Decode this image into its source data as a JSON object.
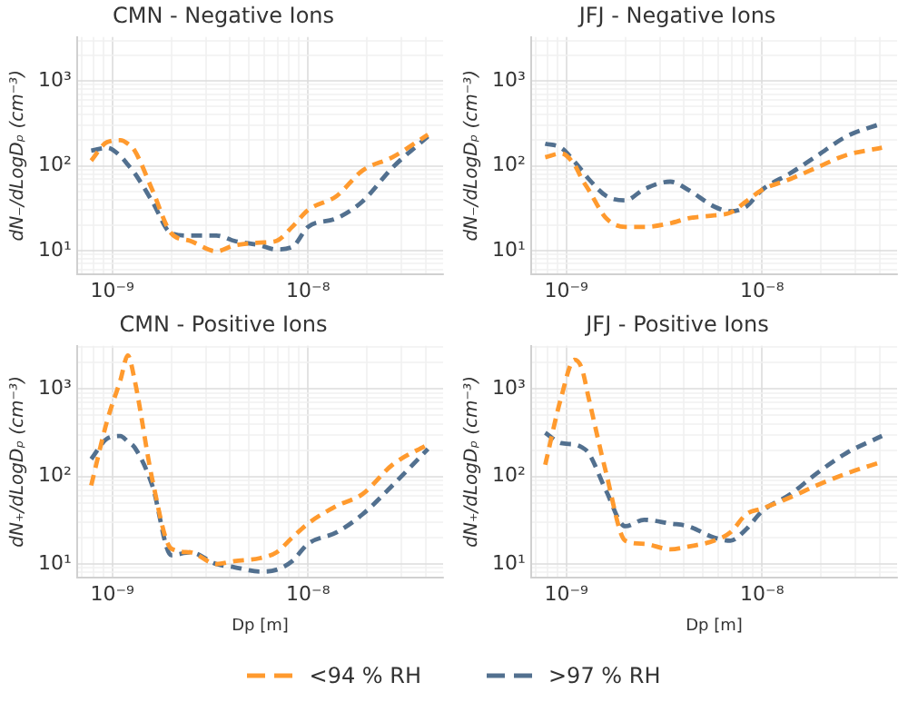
{
  "chart_data": [
    {
      "type": "line",
      "title": "CMN - Negative Ions",
      "ylabel": "dN₋/dLogDₚ (cm⁻³)",
      "log": "xy",
      "grid": true,
      "legend": "bottom",
      "marker": "none",
      "line_style": "dashed",
      "x": [
        7.8e-10,
        9.4e-10,
        1.1e-09,
        1.2e-09,
        1.3e-09,
        1.6e-09,
        2e-09,
        2.5e-09,
        3.4e-09,
        4.2e-09,
        5.7e-09,
        6.9e-09,
        8.3e-09,
        1e-08,
        1.4e-08,
        1.9e-08,
        2.7e-08,
        4.1e-08
      ],
      "xlim": [
        6.6e-10,
        4.9e-08
      ],
      "xticks": [
        {
          "value": 7e-10,
          "label": null
        },
        {
          "value": 8e-10,
          "label": null
        },
        {
          "value": 9e-10,
          "label": null
        },
        {
          "value": 1e-09,
          "label": "10⁻⁹"
        },
        {
          "value": 2e-09,
          "label": null
        },
        {
          "value": 3e-09,
          "label": null
        },
        {
          "value": 4e-09,
          "label": null
        },
        {
          "value": 5e-09,
          "label": null
        },
        {
          "value": 6e-09,
          "label": null
        },
        {
          "value": 7e-09,
          "label": null
        },
        {
          "value": 8e-09,
          "label": null
        },
        {
          "value": 9e-09,
          "label": null
        },
        {
          "value": 1e-08,
          "label": "10⁻⁸"
        },
        {
          "value": 2e-08,
          "label": null
        },
        {
          "value": 3e-08,
          "label": null
        },
        {
          "value": 4e-08,
          "label": null
        }
      ],
      "ylim": [
        5.3,
        3300
      ],
      "yticks": [
        {
          "value": 6,
          "label": null
        },
        {
          "value": 7,
          "label": null
        },
        {
          "value": 8,
          "label": null
        },
        {
          "value": 9,
          "label": null
        },
        {
          "value": 10,
          "label": "10¹"
        },
        {
          "value": 20,
          "label": null
        },
        {
          "value": 30,
          "label": null
        },
        {
          "value": 40,
          "label": null
        },
        {
          "value": 50,
          "label": null
        },
        {
          "value": 60,
          "label": null
        },
        {
          "value": 70,
          "label": null
        },
        {
          "value": 80,
          "label": null
        },
        {
          "value": 90,
          "label": null
        },
        {
          "value": 100,
          "label": "10²"
        },
        {
          "value": 200,
          "label": null
        },
        {
          "value": 300,
          "label": null
        },
        {
          "value": 400,
          "label": null
        },
        {
          "value": 500,
          "label": null
        },
        {
          "value": 600,
          "label": null
        },
        {
          "value": 700,
          "label": null
        },
        {
          "value": 800,
          "label": null
        },
        {
          "value": 900,
          "label": null
        },
        {
          "value": 1000,
          "label": "10³"
        },
        {
          "value": 2000,
          "label": null
        },
        {
          "value": 3000,
          "label": null
        }
      ],
      "series": [
        {
          "name": "<94 % RH",
          "color": "#ff9a2e",
          "values": [
            115,
            190,
            200,
            182,
            151,
            52,
            16,
            13,
            9.8,
            11.5,
            12.4,
            13,
            19,
            30,
            44,
            88,
            126,
            233
          ]
        },
        {
          "name": ">97 % RH",
          "color": "#52708f",
          "values": [
            151,
            163,
            130,
            103,
            82,
            38,
            16,
            15,
            15,
            13,
            11.5,
            10.3,
            11,
            19,
            24,
            38,
            95,
            222
          ]
        }
      ]
    },
    {
      "type": "line",
      "title": "JFJ - Negative Ions",
      "ylabel": "dN₋/dLogDₚ (cm⁻³)",
      "log": "xy",
      "grid": true,
      "marker": "none",
      "line_style": "dashed",
      "x": [
        7.8e-10,
        9.4e-10,
        1.1e-09,
        1.2e-09,
        1.3e-09,
        1.6e-09,
        2e-09,
        2.5e-09,
        3.4e-09,
        4.2e-09,
        5.7e-09,
        6.9e-09,
        8.3e-09,
        1e-08,
        1.4e-08,
        1.9e-08,
        2.7e-08,
        4.1e-08
      ],
      "xlim": [
        6.6e-10,
        4.9e-08
      ],
      "xticks": [
        {
          "value": 7e-10,
          "label": null
        },
        {
          "value": 8e-10,
          "label": null
        },
        {
          "value": 9e-10,
          "label": null
        },
        {
          "value": 1e-09,
          "label": "10⁻⁹"
        },
        {
          "value": 2e-09,
          "label": null
        },
        {
          "value": 3e-09,
          "label": null
        },
        {
          "value": 4e-09,
          "label": null
        },
        {
          "value": 5e-09,
          "label": null
        },
        {
          "value": 6e-09,
          "label": null
        },
        {
          "value": 7e-09,
          "label": null
        },
        {
          "value": 8e-09,
          "label": null
        },
        {
          "value": 9e-09,
          "label": null
        },
        {
          "value": 1e-08,
          "label": "10⁻⁸"
        },
        {
          "value": 2e-08,
          "label": null
        },
        {
          "value": 3e-08,
          "label": null
        },
        {
          "value": 4e-08,
          "label": null
        }
      ],
      "ylim": [
        5.3,
        3300
      ],
      "yticks": [
        {
          "value": 6,
          "label": null
        },
        {
          "value": 7,
          "label": null
        },
        {
          "value": 8,
          "label": null
        },
        {
          "value": 9,
          "label": null
        },
        {
          "value": 10,
          "label": "10¹"
        },
        {
          "value": 20,
          "label": null
        },
        {
          "value": 30,
          "label": null
        },
        {
          "value": 40,
          "label": null
        },
        {
          "value": 50,
          "label": null
        },
        {
          "value": 60,
          "label": null
        },
        {
          "value": 70,
          "label": null
        },
        {
          "value": 80,
          "label": null
        },
        {
          "value": 90,
          "label": null
        },
        {
          "value": 100,
          "label": "10²"
        },
        {
          "value": 200,
          "label": null
        },
        {
          "value": 300,
          "label": null
        },
        {
          "value": 400,
          "label": null
        },
        {
          "value": 500,
          "label": null
        },
        {
          "value": 600,
          "label": null
        },
        {
          "value": 700,
          "label": null
        },
        {
          "value": 800,
          "label": null
        },
        {
          "value": 900,
          "label": null
        },
        {
          "value": 1000,
          "label": "10³"
        },
        {
          "value": 2000,
          "label": null
        },
        {
          "value": 3000,
          "label": null
        }
      ],
      "series": [
        {
          "color": "#ff9a2e",
          "values": [
            126,
            140,
            103,
            70,
            52,
            24,
            19,
            19,
            21,
            24,
            26,
            28,
            38,
            52,
            70,
            95,
            134,
            163
          ]
        },
        {
          "color": "#52708f",
          "values": [
            182,
            163,
            112,
            88,
            70,
            44,
            39,
            53,
            65,
            52,
            33,
            29,
            33,
            52,
            82,
            130,
            222,
            316
          ]
        }
      ]
    },
    {
      "type": "line",
      "title": "CMN - Positive Ions",
      "xlabel": "Dp [m]",
      "ylabel": "dN₊/dLogDₚ (cm⁻³)",
      "log": "xy",
      "grid": true,
      "marker": "none",
      "line_style": "dashed",
      "x": [
        7.8e-10,
        9.4e-10,
        1.1e-09,
        1.2e-09,
        1.3e-09,
        1.6e-09,
        2e-09,
        2.5e-09,
        3.4e-09,
        4.2e-09,
        5.7e-09,
        6.9e-09,
        8.3e-09,
        1e-08,
        1.4e-08,
        1.9e-08,
        2.7e-08,
        4.1e-08
      ],
      "xlim": [
        6.6e-10,
        4.9e-08
      ],
      "xticks": [
        {
          "value": 7e-10,
          "label": null
        },
        {
          "value": 8e-10,
          "label": null
        },
        {
          "value": 9e-10,
          "label": null
        },
        {
          "value": 1e-09,
          "label": "10⁻⁹"
        },
        {
          "value": 2e-09,
          "label": null
        },
        {
          "value": 3e-09,
          "label": null
        },
        {
          "value": 4e-09,
          "label": null
        },
        {
          "value": 5e-09,
          "label": null
        },
        {
          "value": 6e-09,
          "label": null
        },
        {
          "value": 7e-09,
          "label": null
        },
        {
          "value": 8e-09,
          "label": null
        },
        {
          "value": 9e-09,
          "label": null
        },
        {
          "value": 1e-08,
          "label": "10⁻⁸"
        },
        {
          "value": 2e-08,
          "label": null
        },
        {
          "value": 3e-08,
          "label": null
        },
        {
          "value": 4e-08,
          "label": null
        }
      ],
      "ylim": [
        7,
        3100
      ],
      "yticks": [
        {
          "value": 8,
          "label": null
        },
        {
          "value": 9,
          "label": null
        },
        {
          "value": 10,
          "label": "10¹"
        },
        {
          "value": 20,
          "label": null
        },
        {
          "value": 30,
          "label": null
        },
        {
          "value": 40,
          "label": null
        },
        {
          "value": 50,
          "label": null
        },
        {
          "value": 60,
          "label": null
        },
        {
          "value": 70,
          "label": null
        },
        {
          "value": 80,
          "label": null
        },
        {
          "value": 90,
          "label": null
        },
        {
          "value": 100,
          "label": "10²"
        },
        {
          "value": 200,
          "label": null
        },
        {
          "value": 300,
          "label": null
        },
        {
          "value": 400,
          "label": null
        },
        {
          "value": 500,
          "label": null
        },
        {
          "value": 600,
          "label": null
        },
        {
          "value": 700,
          "label": null
        },
        {
          "value": 800,
          "label": null
        },
        {
          "value": 900,
          "label": null
        },
        {
          "value": 1000,
          "label": "10³"
        },
        {
          "value": 2000,
          "label": null
        },
        {
          "value": 3000,
          "label": null
        }
      ],
      "series": [
        {
          "color": "#ff9a2e",
          "values": [
            79,
            430,
            1260,
            2400,
            1260,
            93,
            15,
            13.6,
            10,
            10.8,
            11.7,
            13.6,
            20,
            29,
            46,
            63,
            136,
            232
          ]
        },
        {
          "color": "#52708f",
          "values": [
            158,
            270,
            290,
            250,
            215,
            79,
            12.6,
            13.6,
            10,
            9.2,
            8.2,
            8.6,
            10.8,
            17,
            23,
            37,
            79,
            206
          ]
        }
      ]
    },
    {
      "type": "line",
      "title": "JFJ - Positive Ions",
      "xlabel": "Dp [m]",
      "ylabel": "dN₊/dLogDₚ (cm⁻³)",
      "log": "xy",
      "grid": true,
      "marker": "none",
      "line_style": "dashed",
      "x": [
        7.8e-10,
        9.4e-10,
        1.1e-09,
        1.2e-09,
        1.3e-09,
        1.6e-09,
        2e-09,
        2.5e-09,
        3.4e-09,
        4.2e-09,
        5.7e-09,
        6.9e-09,
        8.3e-09,
        1e-08,
        1.4e-08,
        1.9e-08,
        2.7e-08,
        4.1e-08
      ],
      "xlim": [
        6.6e-10,
        4.9e-08
      ],
      "xticks": [
        {
          "value": 7e-10,
          "label": null
        },
        {
          "value": 8e-10,
          "label": null
        },
        {
          "value": 9e-10,
          "label": null
        },
        {
          "value": 1e-09,
          "label": "10⁻⁹"
        },
        {
          "value": 2e-09,
          "label": null
        },
        {
          "value": 3e-09,
          "label": null
        },
        {
          "value": 4e-09,
          "label": null
        },
        {
          "value": 5e-09,
          "label": null
        },
        {
          "value": 6e-09,
          "label": null
        },
        {
          "value": 7e-09,
          "label": null
        },
        {
          "value": 8e-09,
          "label": null
        },
        {
          "value": 9e-09,
          "label": null
        },
        {
          "value": 1e-08,
          "label": "10⁻⁸"
        },
        {
          "value": 2e-08,
          "label": null
        },
        {
          "value": 3e-08,
          "label": null
        },
        {
          "value": 4e-08,
          "label": null
        }
      ],
      "ylim": [
        7,
        3100
      ],
      "yticks": [
        {
          "value": 8,
          "label": null
        },
        {
          "value": 9,
          "label": null
        },
        {
          "value": 10,
          "label": "10¹"
        },
        {
          "value": 20,
          "label": null
        },
        {
          "value": 30,
          "label": null
        },
        {
          "value": 40,
          "label": null
        },
        {
          "value": 50,
          "label": null
        },
        {
          "value": 60,
          "label": null
        },
        {
          "value": 70,
          "label": null
        },
        {
          "value": 80,
          "label": null
        },
        {
          "value": 90,
          "label": null
        },
        {
          "value": 100,
          "label": "10²"
        },
        {
          "value": 200,
          "label": null
        },
        {
          "value": 300,
          "label": null
        },
        {
          "value": 400,
          "label": null
        },
        {
          "value": 500,
          "label": null
        },
        {
          "value": 600,
          "label": null
        },
        {
          "value": 700,
          "label": null
        },
        {
          "value": 800,
          "label": null
        },
        {
          "value": 900,
          "label": null
        },
        {
          "value": 1000,
          "label": "10³"
        },
        {
          "value": 2000,
          "label": null
        },
        {
          "value": 3000,
          "label": null
        }
      ],
      "series": [
        {
          "color": "#ff9a2e",
          "values": [
            136,
            790,
            2150,
            1710,
            790,
            108,
            18.5,
            17,
            14.7,
            15.8,
            18.5,
            23,
            37,
            43,
            58,
            79,
            108,
            147
          ]
        },
        {
          "color": "#52708f",
          "values": [
            316,
            240,
            232,
            215,
            185,
            68,
            27,
            32,
            29,
            27,
            20,
            18.5,
            25,
            40,
            63,
            108,
            185,
            290
          ]
        }
      ]
    }
  ]
}
